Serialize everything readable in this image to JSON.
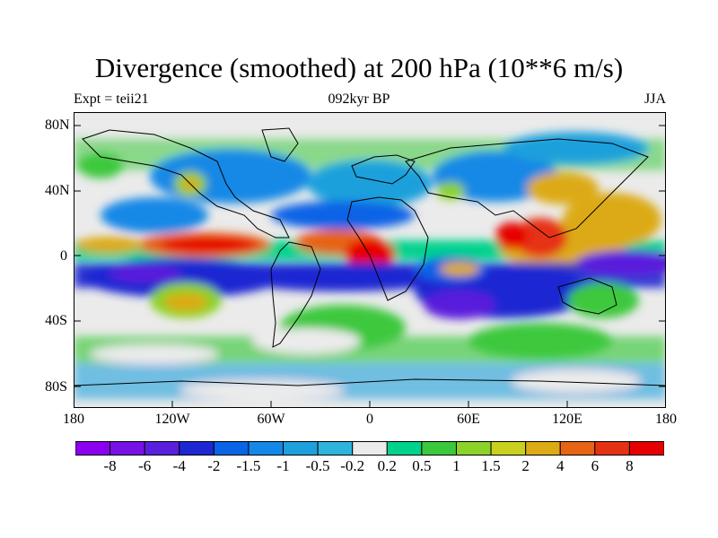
{
  "header": {
    "title": "Divergence (smoothed) at 200 hPa (10**6 m/s)",
    "left": "Expt = teii21",
    "center": "092kyr BP",
    "right": "JJA"
  },
  "axes": {
    "y_ticks": [
      "80N",
      "40N",
      "0",
      "40S",
      "80S"
    ],
    "x_ticks": [
      "180",
      "120W",
      "60W",
      "0",
      "60E",
      "120E",
      "180"
    ]
  },
  "colorbar": {
    "labels": [
      "-8",
      "-6",
      "-4",
      "-2",
      "-1.5",
      "-1",
      "-0.5",
      "-0.2",
      "0.2",
      "0.5",
      "1",
      "1.5",
      "2",
      "4",
      "6",
      "8"
    ],
    "colors": [
      "#8B00EE",
      "#7712E6",
      "#5A1FDC",
      "#1E28D2",
      "#0A64E6",
      "#1488E6",
      "#1EA0DC",
      "#2DB4DC",
      "#EBEBEB",
      "#00D28C",
      "#3CC83C",
      "#8CD228",
      "#C8D21E",
      "#DCAA14",
      "#E66414",
      "#E63214",
      "#E60000"
    ]
  },
  "map": {
    "continent_outline_color": "#000000",
    "features": [
      {
        "lon": -130,
        "lat": 10,
        "value": 6
      },
      {
        "lon": -95,
        "lat": 5,
        "value": 8
      },
      {
        "lon": -30,
        "lat": 8,
        "value": 6
      },
      {
        "lon": -10,
        "lat": 8,
        "value": 6
      },
      {
        "lon": 0,
        "lat": 2,
        "value": 8
      },
      {
        "lon": 95,
        "lat": 15,
        "value": 8
      },
      {
        "lon": 120,
        "lat": 15,
        "value": 6
      },
      {
        "lon": 130,
        "lat": 28,
        "value": 4
      },
      {
        "lon": 40,
        "lat": -12,
        "value": 4
      },
      {
        "lon": -110,
        "lat": -40,
        "value": 2
      },
      {
        "lon": -155,
        "lat": 48,
        "value": 1.5
      },
      {
        "lon": -125,
        "lat": -5,
        "value": -6
      },
      {
        "lon": -45,
        "lat": -10,
        "value": -4
      },
      {
        "lon": 40,
        "lat": -20,
        "value": -4
      },
      {
        "lon": 150,
        "lat": -5,
        "value": -6
      },
      {
        "lon": -120,
        "lat": 55,
        "value": -2
      },
      {
        "lon": 30,
        "lat": 60,
        "value": -1.5
      },
      {
        "lon": 70,
        "lat": -60,
        "value": -1.5
      }
    ]
  }
}
